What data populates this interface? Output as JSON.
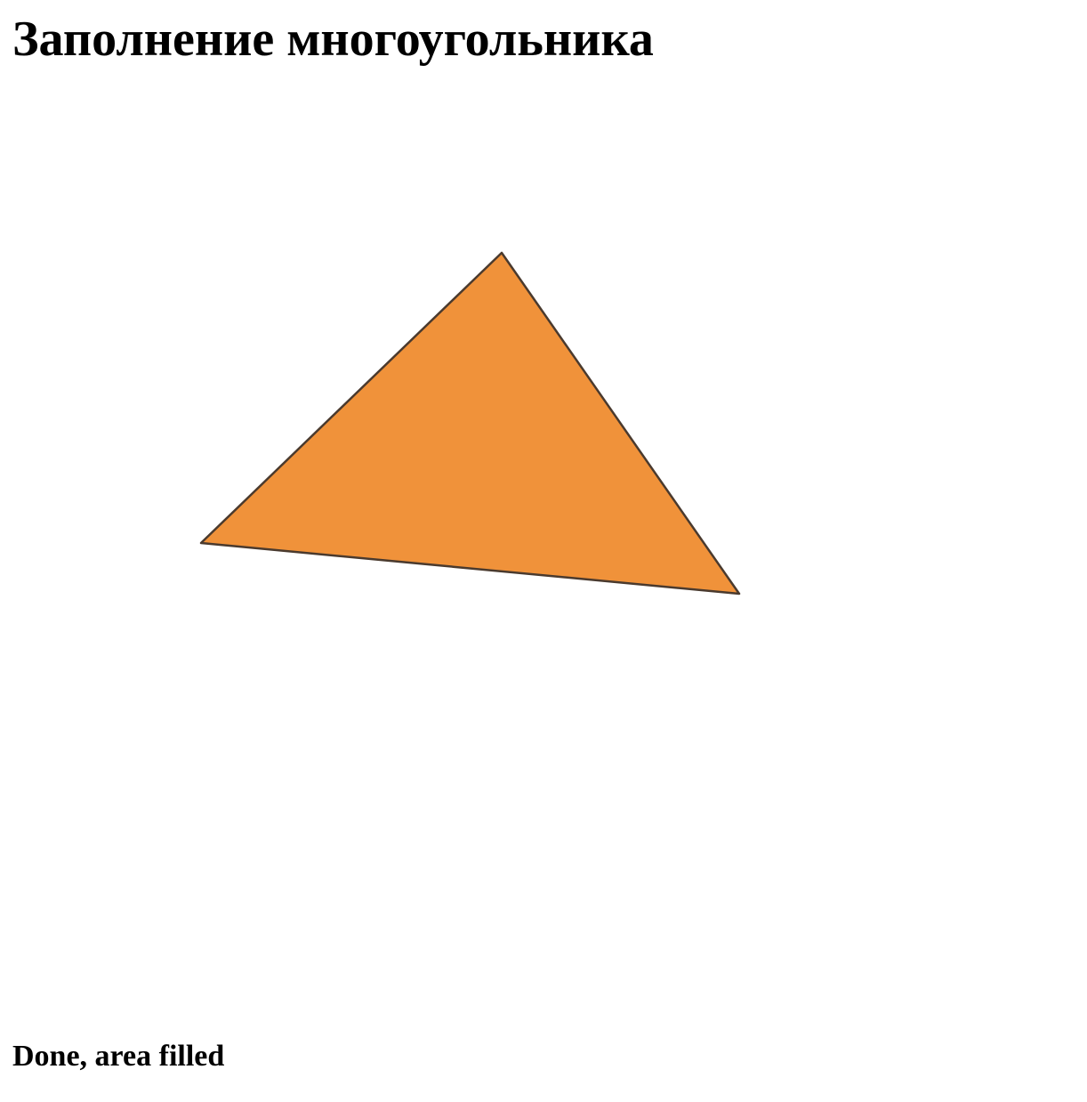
{
  "page": {
    "title": "Заполнение многоугольника",
    "status": "Done, area filled"
  },
  "polygon": {
    "fill_color": "#F0923A",
    "stroke_color": "#4A3A2E"
  }
}
